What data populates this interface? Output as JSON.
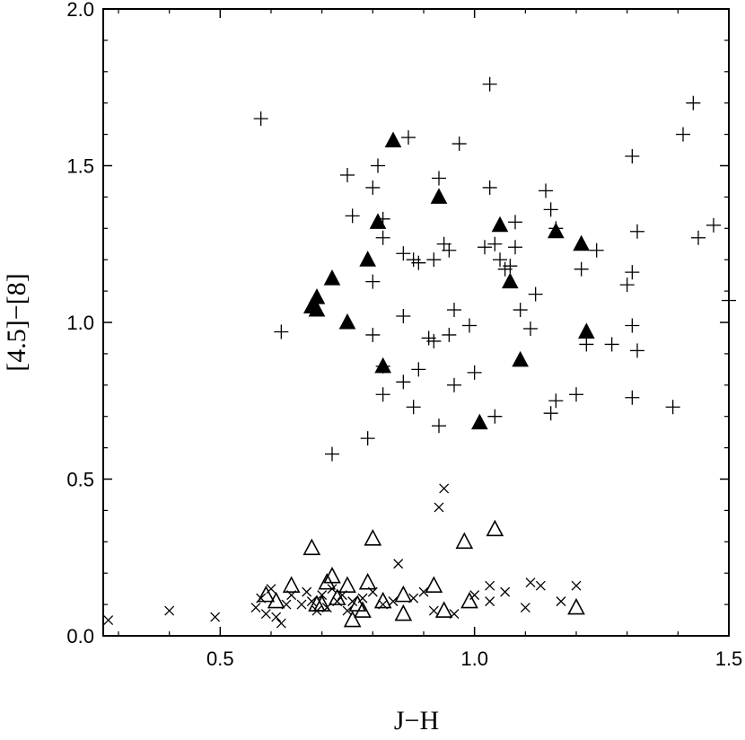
{
  "chart_data": {
    "type": "scatter",
    "xlabel": "J−H",
    "ylabel": "[4.5]−[8]",
    "xlim": [
      0.27,
      1.5
    ],
    "ylim": [
      0.0,
      2.0
    ],
    "xticks": [
      {
        "value": 0.5,
        "label": "0.5"
      },
      {
        "value": 1.0,
        "label": "1.0"
      },
      {
        "value": 1.5,
        "label": "1.5"
      }
    ],
    "yticks": [
      {
        "value": 0.0,
        "label": "0.0"
      },
      {
        "value": 0.5,
        "label": "0.5"
      },
      {
        "value": 1.0,
        "label": "1.0"
      },
      {
        "value": 1.5,
        "label": "1.5"
      },
      {
        "value": 2.0,
        "label": "2.0"
      }
    ],
    "grid": false,
    "series": [
      {
        "marker": "plus",
        "points": [
          [
            0.58,
            1.65
          ],
          [
            0.75,
            1.47
          ],
          [
            0.76,
            1.34
          ],
          [
            0.62,
            0.97
          ],
          [
            0.72,
            0.58
          ],
          [
            0.79,
            0.63
          ],
          [
            0.8,
            1.43
          ],
          [
            0.81,
            1.5
          ],
          [
            0.82,
            1.33
          ],
          [
            0.82,
            1.27
          ],
          [
            0.8,
            1.13
          ],
          [
            0.8,
            0.96
          ],
          [
            0.82,
            0.86
          ],
          [
            0.82,
            0.77
          ],
          [
            0.86,
            1.22
          ],
          [
            0.86,
            1.02
          ],
          [
            0.86,
            0.81
          ],
          [
            0.87,
            1.59
          ],
          [
            0.88,
            1.2
          ],
          [
            0.89,
            1.19
          ],
          [
            0.89,
            0.85
          ],
          [
            0.88,
            0.73
          ],
          [
            0.91,
            0.95
          ],
          [
            0.92,
            0.94
          ],
          [
            0.92,
            1.2
          ],
          [
            0.93,
            1.46
          ],
          [
            0.94,
            1.25
          ],
          [
            0.95,
            1.23
          ],
          [
            0.95,
            0.96
          ],
          [
            0.93,
            0.67
          ],
          [
            0.96,
            1.04
          ],
          [
            0.96,
            0.8
          ],
          [
            0.97,
            1.57
          ],
          [
            0.99,
            0.99
          ],
          [
            1.0,
            0.84
          ],
          [
            1.02,
            1.24
          ],
          [
            1.03,
            1.76
          ],
          [
            1.03,
            1.43
          ],
          [
            1.04,
            1.25
          ],
          [
            1.05,
            1.2
          ],
          [
            1.04,
            0.7
          ],
          [
            1.06,
            1.17
          ],
          [
            1.08,
            1.24
          ],
          [
            1.08,
            1.32
          ],
          [
            1.09,
            1.04
          ],
          [
            1.07,
            1.18
          ],
          [
            1.11,
            0.98
          ],
          [
            1.12,
            1.09
          ],
          [
            1.14,
            1.42
          ],
          [
            1.15,
            1.36
          ],
          [
            1.16,
            1.3
          ],
          [
            1.15,
            0.71
          ],
          [
            1.16,
            0.75
          ],
          [
            1.2,
            0.77
          ],
          [
            1.21,
            1.17
          ],
          [
            1.22,
            0.93
          ],
          [
            1.24,
            1.23
          ],
          [
            1.27,
            0.93
          ],
          [
            1.3,
            1.12
          ],
          [
            1.31,
            1.53
          ],
          [
            1.31,
            1.16
          ],
          [
            1.31,
            0.99
          ],
          [
            1.32,
            0.91
          ],
          [
            1.31,
            0.76
          ],
          [
            1.32,
            1.29
          ],
          [
            1.39,
            0.73
          ],
          [
            1.41,
            1.6
          ],
          [
            1.43,
            1.7
          ],
          [
            1.44,
            1.27
          ],
          [
            1.47,
            1.31
          ],
          [
            1.5,
            1.07
          ]
        ]
      },
      {
        "marker": "triangle-filled",
        "points": [
          [
            0.68,
            1.05
          ],
          [
            0.69,
            1.08
          ],
          [
            0.69,
            1.04
          ],
          [
            0.72,
            1.14
          ],
          [
            0.75,
            1.0
          ],
          [
            0.79,
            1.2
          ],
          [
            0.81,
            1.32
          ],
          [
            0.82,
            0.86
          ],
          [
            0.84,
            1.58
          ],
          [
            0.93,
            1.4
          ],
          [
            1.01,
            0.68
          ],
          [
            1.05,
            1.31
          ],
          [
            1.07,
            1.13
          ],
          [
            1.09,
            0.88
          ],
          [
            1.16,
            1.29
          ],
          [
            1.21,
            1.25
          ],
          [
            1.22,
            0.97
          ]
        ]
      },
      {
        "marker": "triangle-open",
        "points": [
          [
            0.59,
            0.13
          ],
          [
            0.61,
            0.11
          ],
          [
            0.64,
            0.16
          ],
          [
            0.68,
            0.28
          ],
          [
            0.69,
            0.1
          ],
          [
            0.7,
            0.1
          ],
          [
            0.71,
            0.17
          ],
          [
            0.72,
            0.19
          ],
          [
            0.73,
            0.12
          ],
          [
            0.75,
            0.16
          ],
          [
            0.76,
            0.05
          ],
          [
            0.77,
            0.1
          ],
          [
            0.78,
            0.08
          ],
          [
            0.79,
            0.17
          ],
          [
            0.8,
            0.31
          ],
          [
            0.82,
            0.11
          ],
          [
            0.86,
            0.07
          ],
          [
            0.86,
            0.13
          ],
          [
            0.92,
            0.16
          ],
          [
            0.94,
            0.08
          ],
          [
            0.98,
            0.3
          ],
          [
            0.99,
            0.11
          ],
          [
            1.04,
            0.34
          ],
          [
            1.2,
            0.09
          ]
        ]
      },
      {
        "marker": "cross",
        "points": [
          [
            0.28,
            0.05
          ],
          [
            0.4,
            0.08
          ],
          [
            0.49,
            0.06
          ],
          [
            0.57,
            0.09
          ],
          [
            0.58,
            0.12
          ],
          [
            0.59,
            0.07
          ],
          [
            0.6,
            0.15
          ],
          [
            0.61,
            0.06
          ],
          [
            0.62,
            0.04
          ],
          [
            0.63,
            0.1
          ],
          [
            0.64,
            0.13
          ],
          [
            0.66,
            0.1
          ],
          [
            0.67,
            0.14
          ],
          [
            0.68,
            0.11
          ],
          [
            0.69,
            0.08
          ],
          [
            0.7,
            0.13
          ],
          [
            0.71,
            0.09
          ],
          [
            0.72,
            0.15
          ],
          [
            0.73,
            0.11
          ],
          [
            0.74,
            0.13
          ],
          [
            0.75,
            0.08
          ],
          [
            0.76,
            0.11
          ],
          [
            0.78,
            0.12
          ],
          [
            0.8,
            0.14
          ],
          [
            0.82,
            0.1
          ],
          [
            0.84,
            0.11
          ],
          [
            0.85,
            0.23
          ],
          [
            0.88,
            0.12
          ],
          [
            0.9,
            0.14
          ],
          [
            0.92,
            0.08
          ],
          [
            0.93,
            0.41
          ],
          [
            0.94,
            0.47
          ],
          [
            0.96,
            0.07
          ],
          [
            1.0,
            0.13
          ],
          [
            1.03,
            0.11
          ],
          [
            1.03,
            0.16
          ],
          [
            1.06,
            0.14
          ],
          [
            1.1,
            0.09
          ],
          [
            1.11,
            0.17
          ],
          [
            1.13,
            0.16
          ],
          [
            1.17,
            0.11
          ],
          [
            1.2,
            0.16
          ]
        ]
      }
    ]
  }
}
